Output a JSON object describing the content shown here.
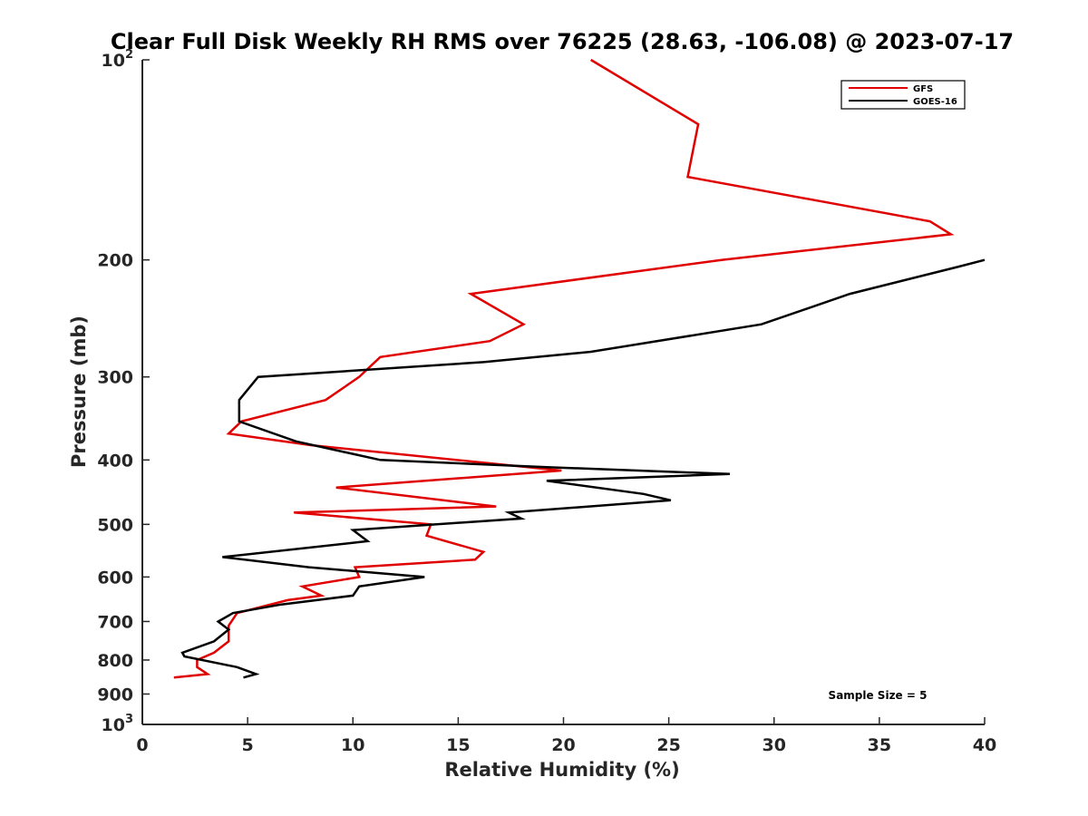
{
  "chart_data": {
    "type": "line",
    "title": "Clear Full Disk Weekly RH RMS over 76225 (28.63, -106.08) @ 2023-07-17",
    "xlabel": "Relative Humidity (%)",
    "ylabel": "Pressure (mb)",
    "xlim": [
      0,
      40
    ],
    "ylim": [
      100,
      1000
    ],
    "y_scale": "log",
    "y_reversed": true,
    "x_ticks": [
      {
        "value": 0,
        "label": "0"
      },
      {
        "value": 5,
        "label": "5"
      },
      {
        "value": 10,
        "label": "10"
      },
      {
        "value": 15,
        "label": "15"
      },
      {
        "value": 20,
        "label": "20"
      },
      {
        "value": 25,
        "label": "25"
      },
      {
        "value": 30,
        "label": "30"
      },
      {
        "value": 35,
        "label": "35"
      },
      {
        "value": 40,
        "label": "40"
      }
    ],
    "y_ticks": [
      {
        "value": 100,
        "base": "10",
        "exp": "2"
      },
      {
        "value": 200,
        "base": "200",
        "exp": ""
      },
      {
        "value": 300,
        "base": "300",
        "exp": ""
      },
      {
        "value": 400,
        "base": "400",
        "exp": ""
      },
      {
        "value": 500,
        "base": "500",
        "exp": ""
      },
      {
        "value": 600,
        "base": "600",
        "exp": ""
      },
      {
        "value": 700,
        "base": "700",
        "exp": ""
      },
      {
        "value": 800,
        "base": "800",
        "exp": ""
      },
      {
        "value": 900,
        "base": "900",
        "exp": ""
      },
      {
        "value": 1000,
        "base": "10",
        "exp": "3"
      }
    ],
    "grid": false,
    "legend_position": "top-right",
    "annotation": "Sample Size = 5",
    "series": [
      {
        "name": "GFS",
        "color": "#e00000",
        "points": [
          [
            21.3,
            100
          ],
          [
            26.4,
            125
          ],
          [
            25.9,
            150
          ],
          [
            37.4,
            175
          ],
          [
            38.4,
            183
          ],
          [
            27.5,
            200
          ],
          [
            15.6,
            225
          ],
          [
            18.1,
            250
          ],
          [
            16.5,
            265
          ],
          [
            11.3,
            280
          ],
          [
            10.3,
            300
          ],
          [
            8.7,
            325
          ],
          [
            4.7,
            350
          ],
          [
            4.1,
            365
          ],
          [
            8.0,
            380
          ],
          [
            19.9,
            415
          ],
          [
            9.2,
            440
          ],
          [
            16.8,
            470
          ],
          [
            7.2,
            480
          ],
          [
            13.7,
            500
          ],
          [
            13.5,
            520
          ],
          [
            16.2,
            550
          ],
          [
            15.8,
            565
          ],
          [
            10.1,
            580
          ],
          [
            10.3,
            600
          ],
          [
            7.6,
            620
          ],
          [
            8.5,
            640
          ],
          [
            6.9,
            650
          ],
          [
            4.5,
            680
          ],
          [
            4.1,
            710
          ],
          [
            4.1,
            750
          ],
          [
            3.4,
            780
          ],
          [
            2.6,
            800
          ],
          [
            2.6,
            820
          ],
          [
            3.1,
            840
          ],
          [
            1.5,
            850
          ]
        ]
      },
      {
        "name": "GOES-16",
        "color": "#000000",
        "points": [
          [
            40.0,
            200
          ],
          [
            38.7,
            205
          ],
          [
            33.6,
            225
          ],
          [
            29.4,
            250
          ],
          [
            21.3,
            275
          ],
          [
            16.2,
            285
          ],
          [
            5.5,
            300
          ],
          [
            4.6,
            325
          ],
          [
            4.6,
            350
          ],
          [
            7.3,
            375
          ],
          [
            11.3,
            400
          ],
          [
            19.2,
            410
          ],
          [
            27.9,
            420
          ],
          [
            19.2,
            430
          ],
          [
            23.8,
            450
          ],
          [
            25.1,
            460
          ],
          [
            17.4,
            480
          ],
          [
            18.0,
            490
          ],
          [
            10.0,
            510
          ],
          [
            10.7,
            530
          ],
          [
            3.8,
            560
          ],
          [
            7.9,
            580
          ],
          [
            13.4,
            600
          ],
          [
            10.3,
            620
          ],
          [
            10.0,
            640
          ],
          [
            6.6,
            660
          ],
          [
            4.3,
            680
          ],
          [
            3.6,
            700
          ],
          [
            4.1,
            720
          ],
          [
            3.4,
            750
          ],
          [
            1.9,
            780
          ],
          [
            2.0,
            790
          ],
          [
            4.5,
            820
          ],
          [
            5.4,
            840
          ],
          [
            4.8,
            850
          ]
        ]
      }
    ]
  }
}
